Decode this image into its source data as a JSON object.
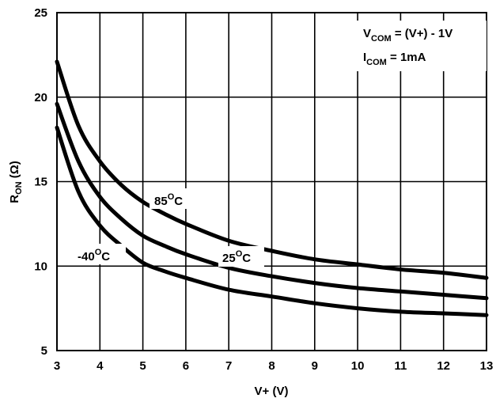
{
  "chart_data": {
    "type": "line",
    "xlabel": "V+ (V)",
    "ylabel_main": "R",
    "ylabel_sub": "ON",
    "ylabel_unit": " (Ω)",
    "xlim": [
      3,
      13
    ],
    "ylim": [
      5,
      25
    ],
    "x_ticks": [
      "3",
      "4",
      "5",
      "6",
      "7",
      "8",
      "9",
      "10",
      "11",
      "12",
      "13"
    ],
    "y_ticks": [
      "5",
      "10",
      "15",
      "20",
      "25"
    ],
    "grid": true,
    "conditions": [
      {
        "main": "V",
        "sub": "COM",
        "rest": " = (V+) - 1V"
      },
      {
        "main": "I",
        "sub": "COM",
        "rest": " = 1mA"
      }
    ],
    "series": [
      {
        "name": "85°C",
        "label_main": "85",
        "label_sup": "O",
        "label_unit": "C",
        "x": [
          3,
          3.5,
          4,
          4.5,
          5,
          5.5,
          6,
          7,
          8,
          9,
          10,
          11,
          12,
          13
        ],
        "y": [
          22.1,
          18.3,
          16.2,
          14.8,
          13.8,
          13.1,
          12.5,
          11.5,
          10.9,
          10.4,
          10.1,
          9.8,
          9.6,
          9.3
        ]
      },
      {
        "name": "25°C",
        "label_main": "25",
        "label_sup": "O",
        "label_unit": "C",
        "x": [
          3,
          3.5,
          4,
          4.5,
          5,
          5.5,
          6,
          7,
          8,
          9,
          10,
          11,
          12,
          13
        ],
        "y": [
          19.6,
          16.2,
          14.1,
          12.8,
          11.8,
          11.2,
          10.7,
          9.9,
          9.4,
          9.0,
          8.7,
          8.5,
          8.3,
          8.1
        ]
      },
      {
        "name": "-40°C",
        "label_main": "-40",
        "label_sup": "O",
        "label_unit": "C",
        "x": [
          3,
          3.5,
          4,
          4.5,
          5,
          5.5,
          6,
          7,
          8,
          9,
          10,
          11,
          12,
          13
        ],
        "y": [
          18.2,
          14.4,
          12.4,
          11.2,
          10.2,
          9.7,
          9.3,
          8.6,
          8.2,
          7.8,
          7.5,
          7.3,
          7.2,
          7.1
        ]
      }
    ]
  }
}
